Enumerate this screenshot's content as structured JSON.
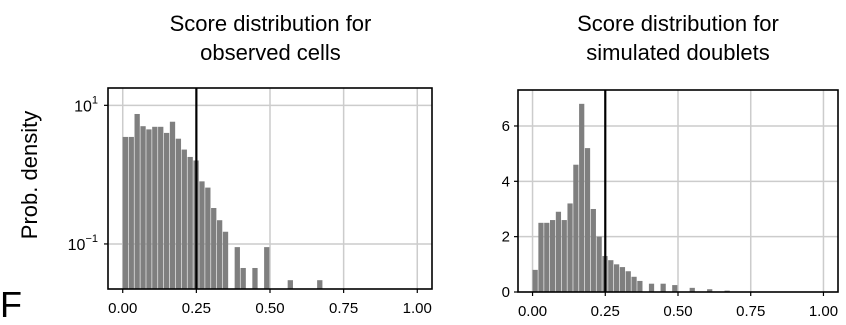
{
  "panel_label": "F",
  "y_axis_label": "Prob. density",
  "chart_data": [
    {
      "type": "bar",
      "title": "Score distribution for\nobserved cells",
      "ylabel": "Prob. density",
      "xlabel": "",
      "yscale": "log",
      "xlim": [
        -0.05,
        1.05
      ],
      "ylim_log10": [
        -1.65,
        1.25
      ],
      "x_ticks": [
        0.0,
        0.25,
        0.5,
        0.75,
        1.0
      ],
      "x_tick_labels": [
        "0.00",
        "0.25",
        "0.50",
        "0.75",
        "1.00"
      ],
      "y_ticks": [
        {
          "base": "10",
          "exp": "1",
          "log10": 1
        },
        {
          "base": "10",
          "exp": "−1",
          "log10": -1
        }
      ],
      "bin_width": 0.02,
      "bins": [
        {
          "x": 0.0,
          "y": 3.5
        },
        {
          "x": 0.02,
          "y": 3.5
        },
        {
          "x": 0.04,
          "y": 7.5
        },
        {
          "x": 0.06,
          "y": 5.0
        },
        {
          "x": 0.08,
          "y": 4.5
        },
        {
          "x": 0.1,
          "y": 4.9
        },
        {
          "x": 0.12,
          "y": 4.9
        },
        {
          "x": 0.14,
          "y": 4.0
        },
        {
          "x": 0.16,
          "y": 5.8
        },
        {
          "x": 0.18,
          "y": 3.3
        },
        {
          "x": 0.2,
          "y": 2.3
        },
        {
          "x": 0.22,
          "y": 1.8
        },
        {
          "x": 0.24,
          "y": 1.6
        },
        {
          "x": 0.26,
          "y": 0.8
        },
        {
          "x": 0.28,
          "y": 0.65
        },
        {
          "x": 0.3,
          "y": 0.33
        },
        {
          "x": 0.32,
          "y": 0.22
        },
        {
          "x": 0.34,
          "y": 0.15
        },
        {
          "x": 0.38,
          "y": 0.09
        },
        {
          "x": 0.4,
          "y": 0.045
        },
        {
          "x": 0.44,
          "y": 0.045
        },
        {
          "x": 0.48,
          "y": 0.09
        },
        {
          "x": 0.56,
          "y": 0.03
        },
        {
          "x": 0.66,
          "y": 0.03
        }
      ],
      "threshold": 0.25,
      "grid": true
    },
    {
      "type": "bar",
      "title": "Score distribution for\nsimulated doublets",
      "ylabel": "",
      "xlabel": "",
      "yscale": "linear",
      "xlim": [
        -0.05,
        1.05
      ],
      "ylim": [
        0,
        7.3
      ],
      "x_ticks": [
        0.0,
        0.25,
        0.5,
        0.75,
        1.0
      ],
      "x_tick_labels": [
        "0.00",
        "0.25",
        "0.50",
        "0.75",
        "1.00"
      ],
      "y_ticks": [
        0,
        2,
        4,
        6
      ],
      "y_tick_labels": [
        "0",
        "2",
        "4",
        "6"
      ],
      "bin_width": 0.02,
      "bins": [
        {
          "x": 0.0,
          "y": 0.8
        },
        {
          "x": 0.02,
          "y": 2.5
        },
        {
          "x": 0.04,
          "y": 2.5
        },
        {
          "x": 0.06,
          "y": 2.6
        },
        {
          "x": 0.08,
          "y": 2.9
        },
        {
          "x": 0.1,
          "y": 2.6
        },
        {
          "x": 0.12,
          "y": 3.2
        },
        {
          "x": 0.14,
          "y": 4.6
        },
        {
          "x": 0.16,
          "y": 6.8
        },
        {
          "x": 0.18,
          "y": 5.2
        },
        {
          "x": 0.2,
          "y": 3.0
        },
        {
          "x": 0.22,
          "y": 2.0
        },
        {
          "x": 0.24,
          "y": 1.3
        },
        {
          "x": 0.26,
          "y": 1.15
        },
        {
          "x": 0.28,
          "y": 1.0
        },
        {
          "x": 0.3,
          "y": 0.9
        },
        {
          "x": 0.32,
          "y": 0.75
        },
        {
          "x": 0.34,
          "y": 0.55
        },
        {
          "x": 0.36,
          "y": 0.4
        },
        {
          "x": 0.4,
          "y": 0.3
        },
        {
          "x": 0.44,
          "y": 0.3
        },
        {
          "x": 0.48,
          "y": 0.25
        },
        {
          "x": 0.54,
          "y": 0.15
        },
        {
          "x": 0.6,
          "y": 0.1
        },
        {
          "x": 0.66,
          "y": 0.05
        }
      ],
      "threshold": 0.25,
      "grid": true
    }
  ],
  "colors": {
    "bar": "#7f7f7f",
    "grid": "#cccccc",
    "axis": "#000000",
    "threshold": "#000000"
  }
}
